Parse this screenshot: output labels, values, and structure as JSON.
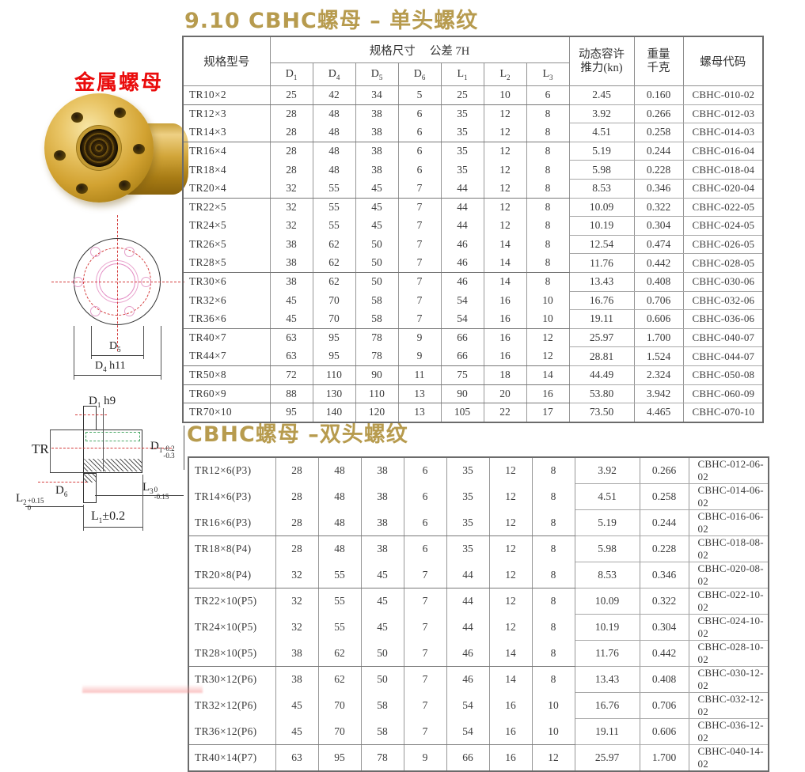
{
  "page": {
    "title_single": "9.10  CBHC螺母 – 单头螺纹",
    "title_double": "CBHC螺母 –双头螺纹",
    "photo_label": "金属螺母"
  },
  "colors": {
    "title_gold": "#b79b4e",
    "label_red": "#ea0c0c",
    "brass": "#d2a231",
    "centerline_red": "#d43c3c",
    "thread_green": "#4aa866",
    "pink_circle": "#e38fc5",
    "border_gray": "#8f8f8f"
  },
  "table_header": {
    "spec": "规格型号",
    "dims_group": "规格尺寸　 公差 7H",
    "dim_cols": [
      "D1",
      "D4",
      "D5",
      "D6",
      "L1",
      "L2",
      "L3"
    ],
    "thrust_line1": "动态容许",
    "thrust_line2": "推力(kn)",
    "weight_line1": "重量",
    "weight_line2": "千克",
    "code": "螺母代码"
  },
  "table_single": {
    "groups": [
      [
        [
          "TR10×2",
          "25",
          "42",
          "34",
          "5",
          "25",
          "10",
          "6",
          "2.45",
          "0.160",
          "CBHC-010-02"
        ]
      ],
      [
        [
          "TR12×3",
          "28",
          "48",
          "38",
          "6",
          "35",
          "12",
          "8",
          "3.92",
          "0.266",
          "CBHC-012-03"
        ],
        [
          "TR14×3",
          "28",
          "48",
          "38",
          "6",
          "35",
          "12",
          "8",
          "4.51",
          "0.258",
          "CBHC-014-03"
        ]
      ],
      [
        [
          "TR16×4",
          "28",
          "48",
          "38",
          "6",
          "35",
          "12",
          "8",
          "5.19",
          "0.244",
          "CBHC-016-04"
        ],
        [
          "TR18×4",
          "28",
          "48",
          "38",
          "6",
          "35",
          "12",
          "8",
          "5.98",
          "0.228",
          "CBHC-018-04"
        ],
        [
          "TR20×4",
          "32",
          "55",
          "45",
          "7",
          "44",
          "12",
          "8",
          "8.53",
          "0.346",
          "CBHC-020-04"
        ]
      ],
      [
        [
          "TR22×5",
          "32",
          "55",
          "45",
          "7",
          "44",
          "12",
          "8",
          "10.09",
          "0.322",
          "CBHC-022-05"
        ],
        [
          "TR24×5",
          "32",
          "55",
          "45",
          "7",
          "44",
          "12",
          "8",
          "10.19",
          "0.304",
          "CBHC-024-05"
        ],
        [
          "TR26×5",
          "38",
          "62",
          "50",
          "7",
          "46",
          "14",
          "8",
          "12.54",
          "0.474",
          "CBHC-026-05"
        ],
        [
          "TR28×5",
          "38",
          "62",
          "50",
          "7",
          "46",
          "14",
          "8",
          "11.76",
          "0.442",
          "CBHC-028-05"
        ]
      ],
      [
        [
          "TR30×6",
          "38",
          "62",
          "50",
          "7",
          "46",
          "14",
          "8",
          "13.43",
          "0.408",
          "CBHC-030-06"
        ],
        [
          "TR32×6",
          "45",
          "70",
          "58",
          "7",
          "54",
          "16",
          "10",
          "16.76",
          "0.706",
          "CBHC-032-06"
        ],
        [
          "TR36×6",
          "45",
          "70",
          "58",
          "7",
          "54",
          "16",
          "10",
          "19.11",
          "0.606",
          "CBHC-036-06"
        ]
      ],
      [
        [
          "TR40×7",
          "63",
          "95",
          "78",
          "9",
          "66",
          "16",
          "12",
          "25.97",
          "1.700",
          "CBHC-040-07"
        ],
        [
          "TR44×7",
          "63",
          "95",
          "78",
          "9",
          "66",
          "16",
          "12",
          "28.81",
          "1.524",
          "CBHC-044-07"
        ]
      ],
      [
        [
          "TR50×8",
          "72",
          "110",
          "90",
          "11",
          "75",
          "18",
          "14",
          "44.49",
          "2.324",
          "CBHC-050-08"
        ]
      ],
      [
        [
          "TR60×9",
          "88",
          "130",
          "110",
          "13",
          "90",
          "20",
          "16",
          "53.80",
          "3.942",
          "CBHC-060-09"
        ]
      ],
      [
        [
          "TR70×10",
          "95",
          "140",
          "120",
          "13",
          "105",
          "22",
          "17",
          "73.50",
          "4.465",
          "CBHC-070-10"
        ]
      ]
    ]
  },
  "table_double": {
    "groups": [
      [
        [
          "TR12×6(P3)",
          "28",
          "48",
          "38",
          "6",
          "35",
          "12",
          "8",
          "3.92",
          "0.266",
          "CBHC-012-06-02"
        ],
        [
          "TR14×6(P3)",
          "28",
          "48",
          "38",
          "6",
          "35",
          "12",
          "8",
          "4.51",
          "0.258",
          "CBHC-014-06-02"
        ],
        [
          "TR16×6(P3)",
          "28",
          "48",
          "38",
          "6",
          "35",
          "12",
          "8",
          "5.19",
          "0.244",
          "CBHC-016-06-02"
        ]
      ],
      [
        [
          "TR18×8(P4)",
          "28",
          "48",
          "38",
          "6",
          "35",
          "12",
          "8",
          "5.98",
          "0.228",
          "CBHC-018-08-02"
        ],
        [
          "TR20×8(P4)",
          "32",
          "55",
          "45",
          "7",
          "44",
          "12",
          "8",
          "8.53",
          "0.346",
          "CBHC-020-08-02"
        ]
      ],
      [
        [
          "TR22×10(P5)",
          "32",
          "55",
          "45",
          "7",
          "44",
          "12",
          "8",
          "10.09",
          "0.322",
          "CBHC-022-10-02"
        ],
        [
          "TR24×10(P5)",
          "32",
          "55",
          "45",
          "7",
          "44",
          "12",
          "8",
          "10.19",
          "0.304",
          "CBHC-024-10-02"
        ],
        [
          "TR28×10(P5)",
          "38",
          "62",
          "50",
          "7",
          "46",
          "14",
          "8",
          "11.76",
          "0.442",
          "CBHC-028-10-02"
        ]
      ],
      [
        [
          "TR30×12(P6)",
          "38",
          "62",
          "50",
          "7",
          "46",
          "14",
          "8",
          "13.43",
          "0.408",
          "CBHC-030-12-02"
        ],
        [
          "TR32×12(P6)",
          "45",
          "70",
          "58",
          "7",
          "54",
          "16",
          "10",
          "16.76",
          "0.706",
          "CBHC-032-12-02"
        ],
        [
          "TR36×12(P6)",
          "45",
          "70",
          "58",
          "7",
          "54",
          "16",
          "10",
          "19.11",
          "0.606",
          "CBHC-036-12-02"
        ]
      ],
      [
        [
          "TR40×14(P7)",
          "63",
          "95",
          "78",
          "9",
          "66",
          "16",
          "12",
          "25.97",
          "1.700",
          "CBHC-040-14-02"
        ]
      ]
    ]
  },
  "drawings": {
    "front_view": {
      "dim_inner": "D5",
      "dim_outer": "D4 h11"
    },
    "section_view": {
      "dim_top": "D1 h9",
      "dim_tr": "TR",
      "dim_right_base": "D1",
      "dim_right_tol_top": "-0.2",
      "dim_right_tol_bot": "-0.3",
      "dim_d6": "D6",
      "dim_l3_base": "L3",
      "dim_l3_tol_top": "0",
      "dim_l3_tol_bot": "-0.15",
      "dim_l2_base": "L2",
      "dim_l2_tol_top": "+0.15",
      "dim_l2_tol_bot": "0",
      "dim_l1": "L1±0.2"
    }
  }
}
